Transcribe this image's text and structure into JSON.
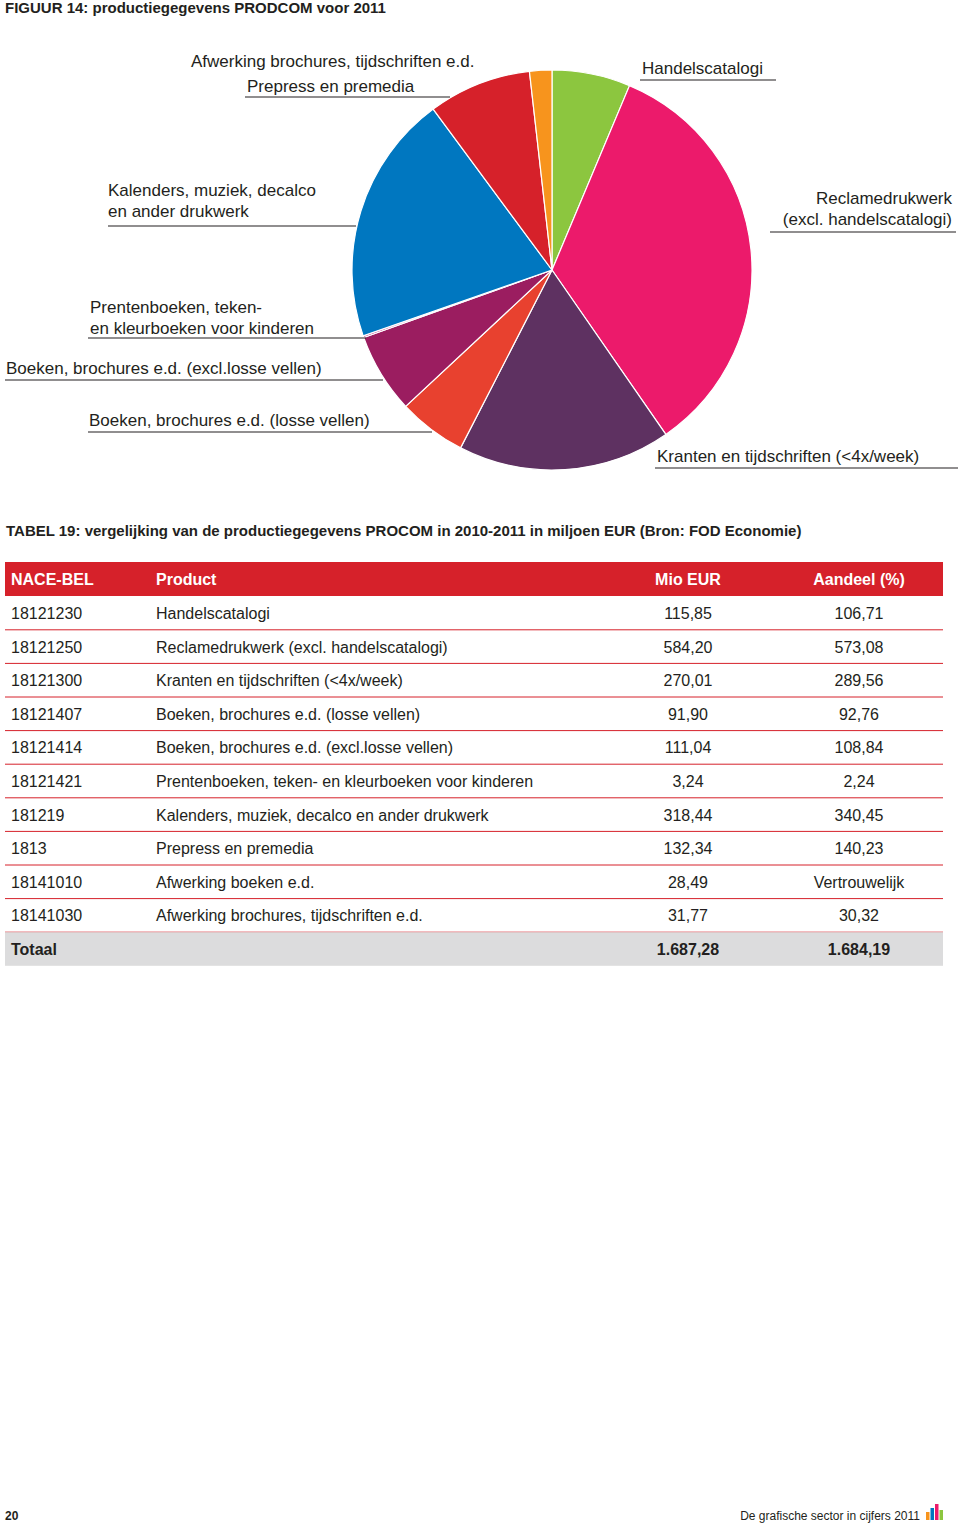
{
  "chart_data": {
    "type": "pie",
    "title": "FIGUUR 14: productiegegevens PRODCOM voor 2011",
    "categories": [
      "Handelscatalogi",
      "Reclamedrukwerk\n(excl. handelscatalogi)",
      "Kranten en tijdschriften (<4x/week)",
      "Boeken, brochures e.d. (losse vellen)",
      "Boeken, brochures e.d. (excl.losse vellen)",
      "Prentenboeken, teken-\nen kleurboeken voor kinderen",
      "Kalenders, muziek, decalco\nen ander drukwerk",
      "Prepress en premedia",
      "Afwerking brochures, tijdschriften e.d."
    ],
    "values": [
      106.71,
      573.08,
      289.56,
      92.76,
      108.84,
      2.24,
      340.45,
      140.23,
      30.32
    ],
    "colors": [
      "#8cc63f",
      "#ec1a6b",
      "#5e3161",
      "#e8412f",
      "#9b1d60",
      "#c22a7e",
      "#0077c0",
      "#d6212a",
      "#f7941d"
    ]
  },
  "table": {
    "title": "TABEL 19: vergelijking van de productiegegevens PROCOM in 2010-2011 in miljoen EUR (Bron: FOD Economie)",
    "columns": [
      "NACE-BEL",
      "Product",
      "Mio EUR",
      "Aandeel (%)"
    ],
    "rows": [
      [
        "18121230",
        "Handelscatalogi",
        "115,85",
        "106,71"
      ],
      [
        "18121250",
        "Reclamedrukwerk (excl. handelscatalogi)",
        "584,20",
        "573,08"
      ],
      [
        "18121300",
        "Kranten en tijdschriften (<4x/week)",
        "270,01",
        "289,56"
      ],
      [
        "18121407",
        "Boeken, brochures e.d. (losse vellen)",
        "91,90",
        "92,76"
      ],
      [
        "18121414",
        "Boeken, brochures e.d. (excl.losse vellen)",
        "111,04",
        "108,84"
      ],
      [
        "18121421",
        "Prentenboeken, teken- en kleurboeken voor kinderen",
        "3,24",
        "2,24"
      ],
      [
        "181219",
        "Kalenders, muziek, decalco en ander drukwerk",
        "318,44",
        "340,45"
      ],
      [
        "1813",
        "Prepress en premedia",
        "132,34",
        "140,23"
      ],
      [
        "18141010",
        "Afwerking boeken e.d.",
        "28,49",
        "Vertrouwelijk"
      ],
      [
        "18141030",
        "Afwerking brochures, tijdschriften e.d.",
        "31,77",
        "30,32"
      ]
    ],
    "total": [
      "Totaal",
      "1.687,28",
      "1.684,19"
    ]
  },
  "footer": {
    "page": "20",
    "text": "De grafische sector in cijfers 2011"
  }
}
